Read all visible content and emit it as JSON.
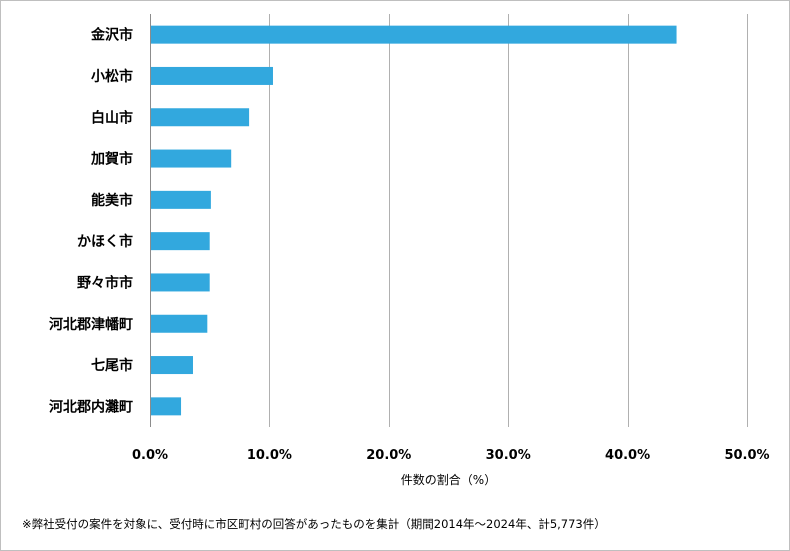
{
  "chart_data": {
    "type": "bar",
    "orientation": "horizontal",
    "categories": [
      "金沢市",
      "小松市",
      "白山市",
      "加賀市",
      "能美市",
      "かほく市",
      "野々市市",
      "河北郡津幡町",
      "七尾市",
      "河北郡内灘町"
    ],
    "values": [
      44.1,
      10.3,
      8.3,
      6.8,
      5.1,
      5.0,
      5.0,
      4.8,
      3.6,
      2.6
    ],
    "xlim": [
      0,
      50
    ],
    "x_ticks": [
      "0.0%",
      "10.0%",
      "20.0%",
      "30.0%",
      "40.0%",
      "50.0%"
    ],
    "xlabel": "件数の割合（%）",
    "bar_color": "#32a8de",
    "gridlines": "vertical"
  },
  "footnote": "※弊社受付の案件を対象に、受付時に市区町村の回答があったものを集計（期間2014年～2024年、計5,773件）"
}
